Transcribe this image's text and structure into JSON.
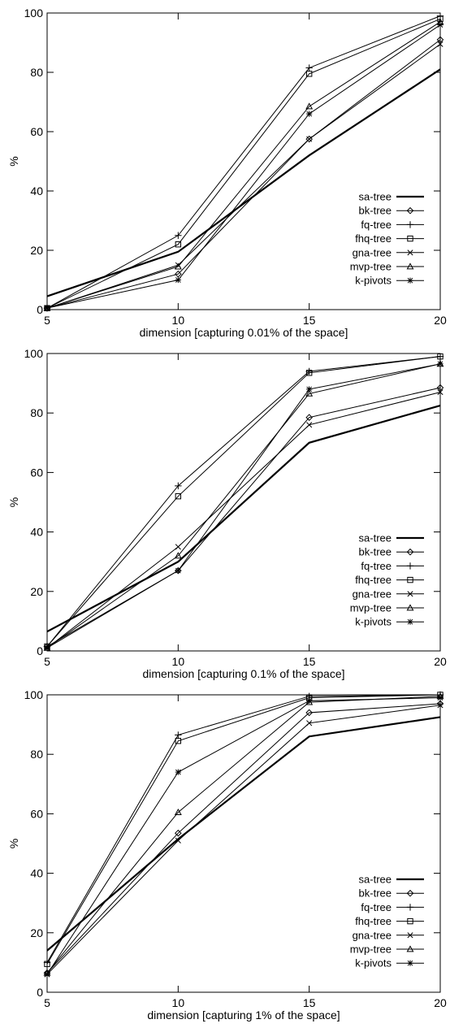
{
  "chart_data": [
    {
      "type": "line",
      "xlabel": "dimension [capturing 0.01% of the space]",
      "ylabel": "%",
      "x": [
        5,
        10,
        15,
        20
      ],
      "xlim": [
        5,
        20
      ],
      "ylim": [
        0,
        100
      ],
      "xticks": [
        5,
        10,
        15,
        20
      ],
      "yticks": [
        0,
        20,
        40,
        60,
        80,
        100
      ],
      "grid": false,
      "legend": "bottom-right",
      "series": [
        {
          "name": "sa-tree",
          "marker": "none",
          "values": [
            4.5,
            19.5,
            52,
            81
          ]
        },
        {
          "name": "bk-tree",
          "marker": "diamond",
          "values": [
            0.5,
            12,
            57.5,
            91
          ]
        },
        {
          "name": "fq-tree",
          "marker": "plus",
          "values": [
            0.5,
            25,
            81.5,
            99
          ]
        },
        {
          "name": "fhq-tree",
          "marker": "square",
          "values": [
            0.5,
            22,
            79.5,
            98
          ]
        },
        {
          "name": "gna-tree",
          "marker": "cross",
          "values": [
            0.5,
            15,
            57.5,
            89.5
          ]
        },
        {
          "name": "mvp-tree",
          "marker": "triangle",
          "values": [
            0.5,
            14.5,
            68.5,
            97
          ]
        },
        {
          "name": "k-pivots",
          "marker": "star",
          "values": [
            0.5,
            10,
            66,
            96
          ]
        }
      ]
    },
    {
      "type": "line",
      "xlabel": "dimension [capturing 0.1% of the space]",
      "ylabel": "%",
      "x": [
        5,
        10,
        15,
        20
      ],
      "xlim": [
        5,
        20
      ],
      "ylim": [
        0,
        100
      ],
      "xticks": [
        5,
        10,
        15,
        20
      ],
      "yticks": [
        0,
        20,
        40,
        60,
        80,
        100
      ],
      "grid": false,
      "legend": "bottom-right",
      "series": [
        {
          "name": "sa-tree",
          "marker": "none",
          "values": [
            6.5,
            30,
            70,
            82.5
          ]
        },
        {
          "name": "bk-tree",
          "marker": "diamond",
          "values": [
            1.5,
            27,
            78.5,
            88.5
          ]
        },
        {
          "name": "fq-tree",
          "marker": "plus",
          "values": [
            1.5,
            55.5,
            94,
            99
          ]
        },
        {
          "name": "fhq-tree",
          "marker": "square",
          "values": [
            1.5,
            52,
            93.5,
            99
          ]
        },
        {
          "name": "gna-tree",
          "marker": "cross",
          "values": [
            1,
            35,
            76,
            87
          ]
        },
        {
          "name": "mvp-tree",
          "marker": "triangle",
          "values": [
            1,
            32,
            86.5,
            96.5
          ]
        },
        {
          "name": "k-pivots",
          "marker": "star",
          "values": [
            1,
            27,
            88,
            96.5
          ]
        }
      ]
    },
    {
      "type": "line",
      "xlabel": "dimension [capturing 1% of the space]",
      "ylabel": "%",
      "x": [
        5,
        10,
        15,
        20
      ],
      "xlim": [
        5,
        20
      ],
      "ylim": [
        0,
        100
      ],
      "xticks": [
        5,
        10,
        15,
        20
      ],
      "yticks": [
        0,
        20,
        40,
        60,
        80,
        100
      ],
      "grid": false,
      "legend": "bottom-right",
      "series": [
        {
          "name": "sa-tree",
          "marker": "none",
          "values": [
            14,
            51.5,
            86,
            92.5
          ]
        },
        {
          "name": "bk-tree",
          "marker": "diamond",
          "values": [
            6.5,
            53.5,
            94,
            97
          ]
        },
        {
          "name": "fq-tree",
          "marker": "plus",
          "values": [
            10,
            86.5,
            99.5,
            100
          ]
        },
        {
          "name": "fhq-tree",
          "marker": "square",
          "values": [
            9.5,
            84.5,
            99,
            100
          ]
        },
        {
          "name": "gna-tree",
          "marker": "cross",
          "values": [
            6,
            51,
            90.5,
            96.5
          ]
        },
        {
          "name": "mvp-tree",
          "marker": "triangle",
          "values": [
            6.5,
            60.5,
            97.5,
            99.5
          ]
        },
        {
          "name": "k-pivots",
          "marker": "star",
          "values": [
            6,
            74,
            98,
            99
          ]
        }
      ]
    }
  ]
}
